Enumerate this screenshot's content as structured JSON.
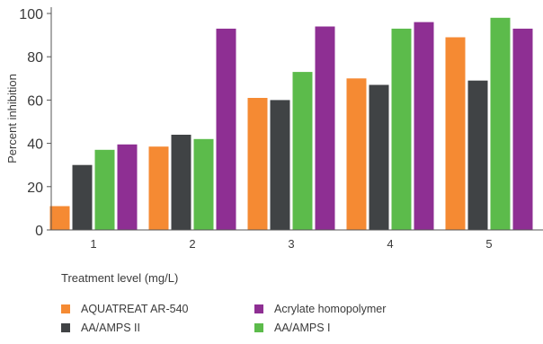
{
  "chart_data": {
    "type": "bar",
    "categories": [
      "1",
      "2",
      "3",
      "4",
      "5"
    ],
    "series": [
      {
        "name": "AQUATREAT AR-540",
        "color": "#f58a33",
        "values": [
          11,
          38.5,
          61,
          70,
          89
        ]
      },
      {
        "name": "AA/AMPS II",
        "color": "#404345",
        "values": [
          30,
          44,
          60,
          67,
          69
        ]
      },
      {
        "name": "AA/AMPS I",
        "color": "#5cbb4b",
        "values": [
          37,
          42,
          73,
          93,
          98
        ]
      },
      {
        "name": "Acrylate homopolymer",
        "color": "#8e2f93",
        "values": [
          39.5,
          93,
          94,
          96,
          93
        ]
      }
    ],
    "title": "",
    "xlabel": "Treatment level (mg/L)",
    "ylabel": "Percent inhibition",
    "ylim": [
      0,
      100
    ],
    "yticks": [
      0,
      20,
      40,
      60,
      80,
      100
    ],
    "grid": false,
    "legend_position": "bottom"
  }
}
